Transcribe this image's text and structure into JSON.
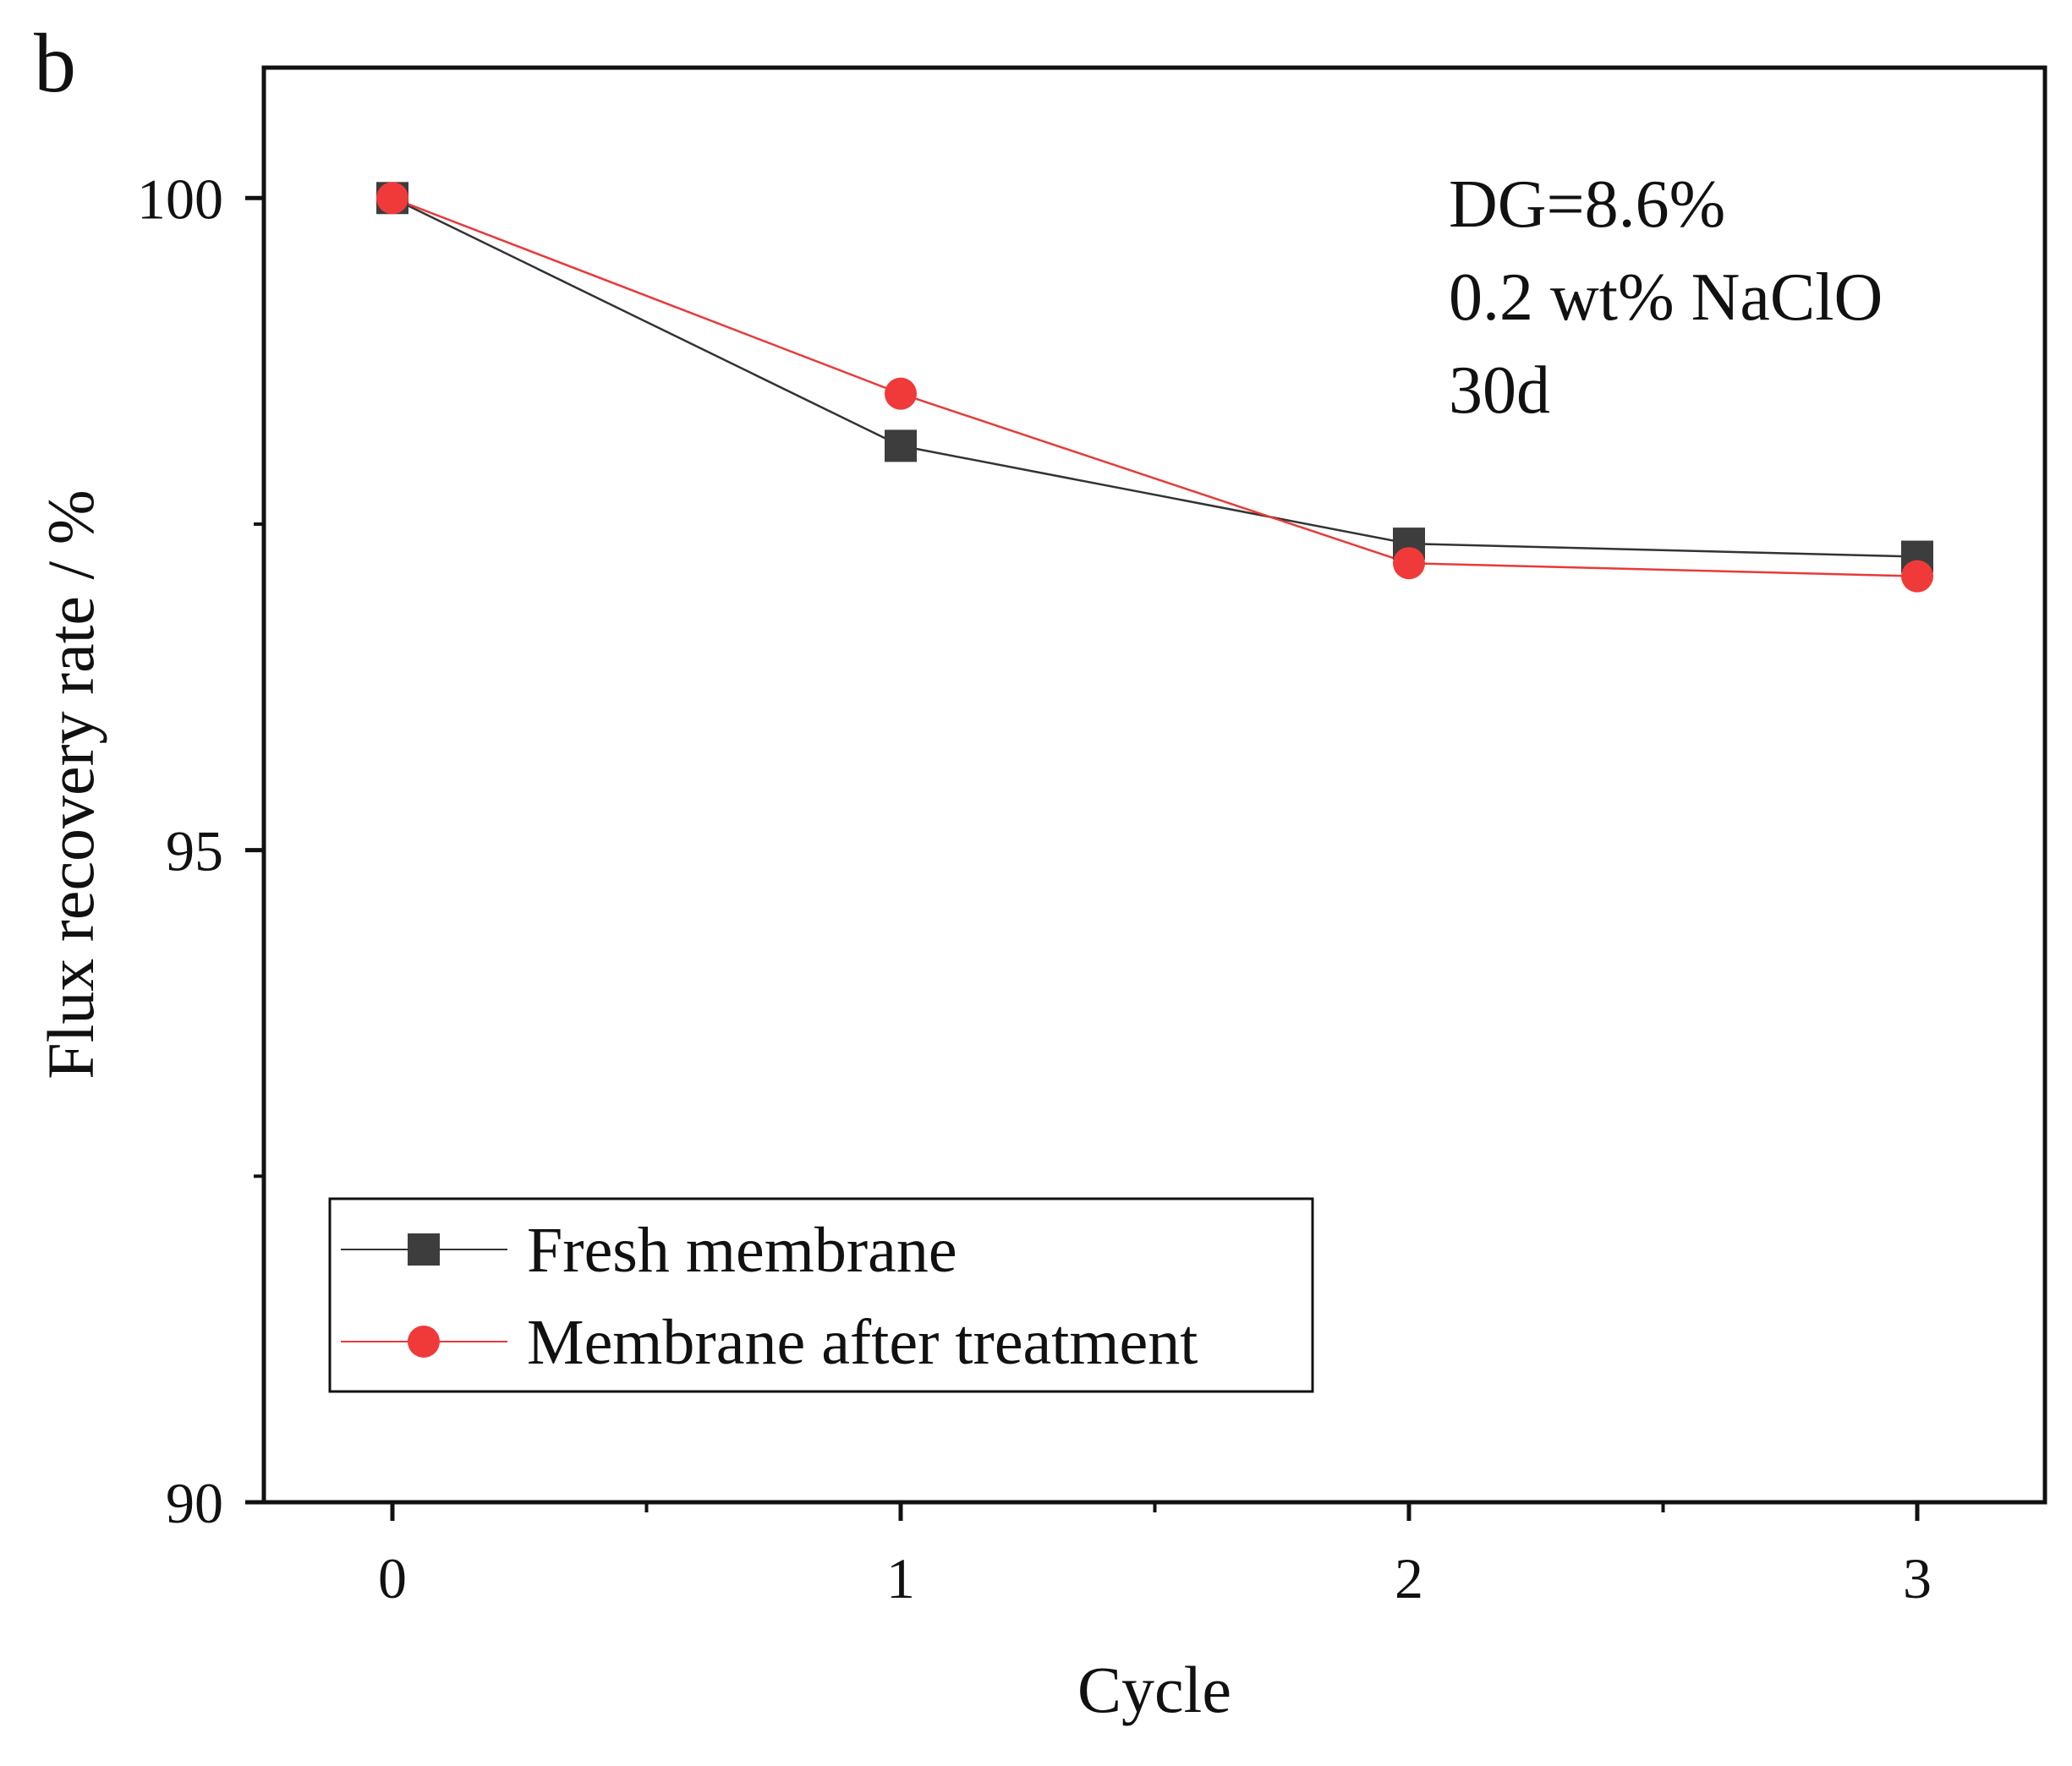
{
  "chart_data": {
    "type": "line",
    "panel_label": "b",
    "title": "",
    "xlabel": "Cycle",
    "ylabel": "Flux recovery rate / %",
    "x": [
      0,
      1,
      2,
      3
    ],
    "x_tick_labels": [
      "0",
      "1",
      "2",
      "3"
    ],
    "y_tick_labels": [
      "90",
      "95",
      "100"
    ],
    "xlim": [
      -0.25,
      3.25
    ],
    "ylim": [
      90,
      101
    ],
    "y_major_ticks": [
      90,
      95,
      100
    ],
    "y_minor_ticks": [
      92.5,
      97.5
    ],
    "x_minor_ticks": [
      0.5,
      1.5,
      2.5
    ],
    "grid": false,
    "legend_position": "bottom-left",
    "annotations": [
      "DG=8.6%",
      "0.2 wt% NaClO",
      "30d"
    ],
    "series": [
      {
        "name": "Fresh membrane",
        "marker": "square",
        "color": "#3d3d3d",
        "line_color": "#333333",
        "values": [
          100,
          98.1,
          97.35,
          97.25
        ]
      },
      {
        "name": "Membrane after treatment",
        "marker": "circle",
        "color": "#f03a3a",
        "line_color": "#e83a3a",
        "values": [
          100,
          98.5,
          97.2,
          97.1
        ]
      }
    ]
  }
}
